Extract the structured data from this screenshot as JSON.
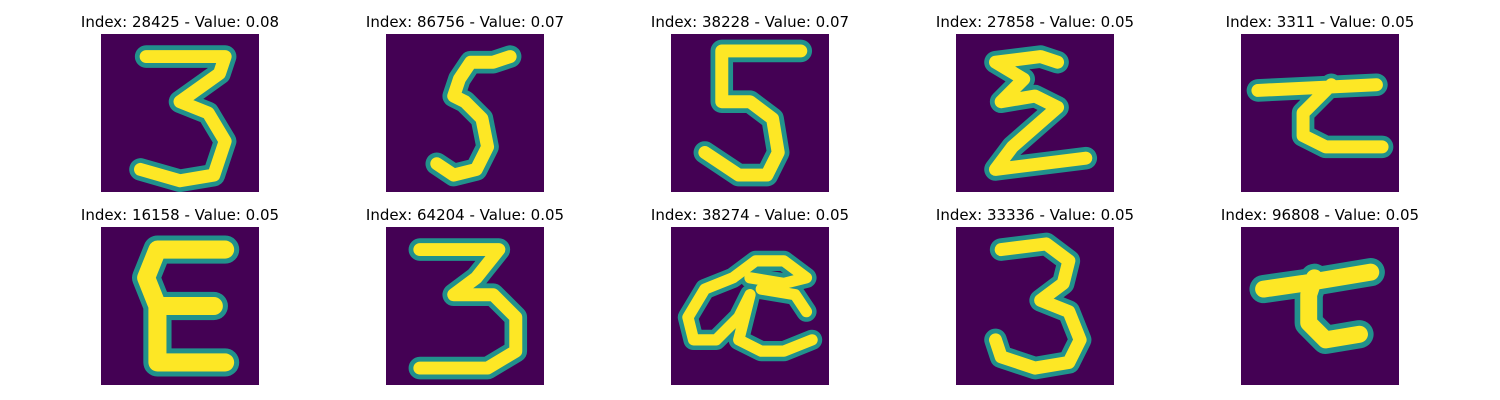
{
  "colors": {
    "background": "#440154",
    "stroke_edge": "#21918c",
    "stroke_core": "#fde725"
  },
  "panels": [
    {
      "title": "Index: 28425 - Value: 0.08",
      "digit": "3"
    },
    {
      "title": "Index: 86756 - Value: 0.07",
      "digit": "5"
    },
    {
      "title": "Index: 38228 - Value: 0.07",
      "digit": "5"
    },
    {
      "title": "Index: 27858 - Value: 0.05",
      "digit": "zigzag"
    },
    {
      "title": "Index: 3311 - Value: 0.05",
      "digit": "hook"
    },
    {
      "title": "Index: 16158 - Value: 0.05",
      "digit": "E"
    },
    {
      "title": "Index: 64204 - Value: 0.05",
      "digit": "3"
    },
    {
      "title": "Index: 38274 - Value: 0.05",
      "digit": "loop"
    },
    {
      "title": "Index: 33336 - Value: 0.05",
      "digit": "3"
    },
    {
      "title": "Index: 96808 - Value: 0.05",
      "digit": "hook"
    }
  ]
}
